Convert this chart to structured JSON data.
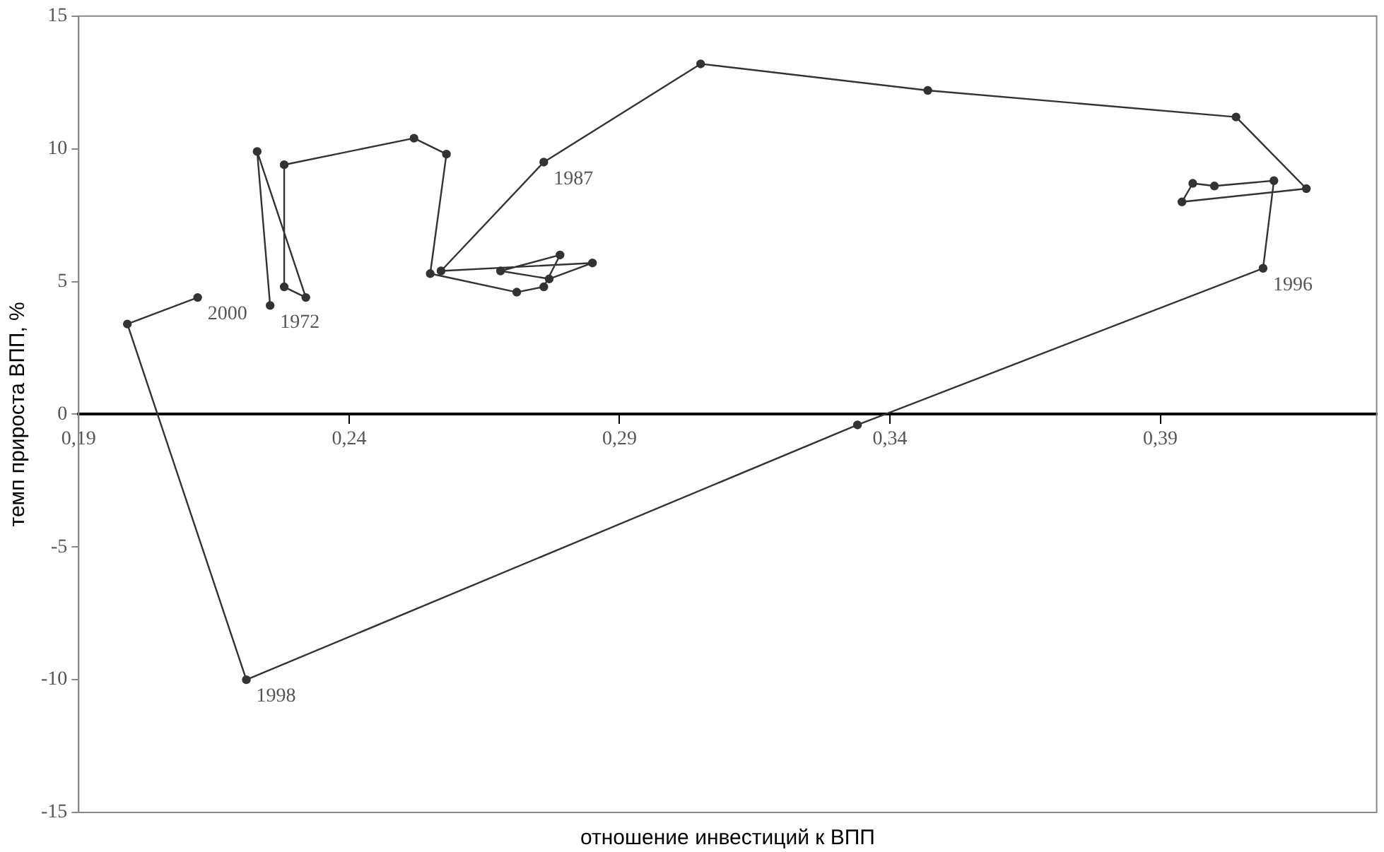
{
  "chart_data": {
    "type": "line",
    "xlabel": "отношение инвестиций к ВПП",
    "ylabel": "темп прироста ВПП, %",
    "xlim": [
      0.19,
      0.43
    ],
    "xticks": [
      {
        "value": 0.19,
        "label": "0,19"
      },
      {
        "value": 0.24,
        "label": "0,24"
      },
      {
        "value": 0.29,
        "label": "0,29"
      },
      {
        "value": 0.34,
        "label": "0,34"
      },
      {
        "value": 0.39,
        "label": "0,39"
      }
    ],
    "ylim": [
      -15,
      15
    ],
    "yticks": [
      -15,
      -10,
      -5,
      0,
      5,
      10,
      15
    ],
    "grid": false,
    "legend": false,
    "marker": "circle",
    "line_style": "solid",
    "series": [
      {
        "color": "#333333",
        "x": [
          0.2254,
          0.223,
          0.232,
          0.228,
          0.228,
          0.252,
          0.258,
          0.255,
          0.271,
          0.276,
          0.279,
          0.268,
          0.277,
          0.285,
          0.257,
          0.276,
          0.305,
          0.347,
          0.404,
          0.417,
          0.394,
          0.396,
          0.4,
          0.411,
          0.409,
          0.334,
          0.221,
          0.199,
          0.212
        ],
        "values": [
          4.1,
          9.9,
          4.4,
          4.8,
          9.4,
          10.4,
          9.8,
          5.3,
          4.6,
          4.8,
          6.0,
          5.4,
          5.1,
          5.7,
          5.4,
          9.5,
          13.2,
          12.2,
          11.2,
          8.5,
          8.0,
          8.7,
          8.6,
          8.8,
          5.5,
          -0.4,
          -10.0,
          3.4,
          4.4
        ]
      }
    ],
    "annotations": [
      {
        "text": "1972",
        "x": 0.2254,
        "y": 4.1
      },
      {
        "text": "1987",
        "x": 0.276,
        "y": 9.5
      },
      {
        "text": "1996",
        "x": 0.409,
        "y": 5.5
      },
      {
        "text": "1998",
        "x": 0.221,
        "y": -10.0
      },
      {
        "text": "2000",
        "x": 0.212,
        "y": 4.4
      }
    ]
  }
}
